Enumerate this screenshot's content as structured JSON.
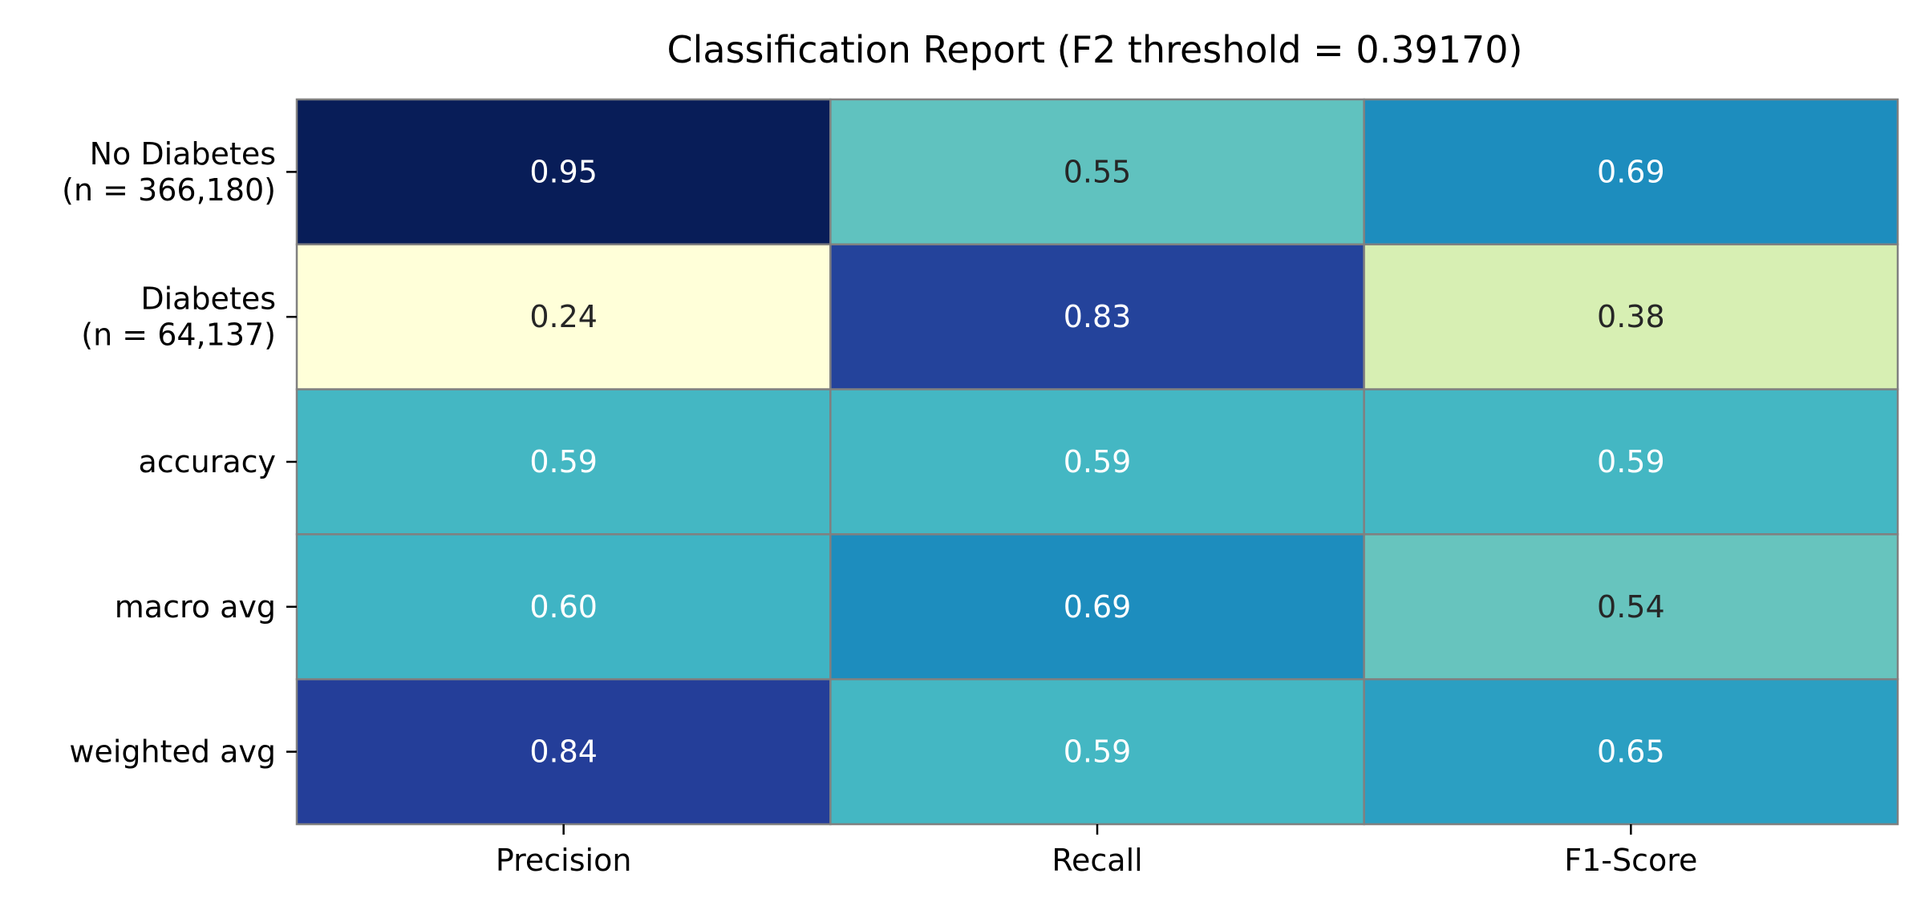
{
  "chart_data": {
    "type": "heatmap",
    "title": "Classification Report (F2 threshold = 0.39170)",
    "xlabel": "",
    "ylabel": "",
    "columns": [
      "Precision",
      "Recall",
      "F1-Score"
    ],
    "rows": [
      [
        "No Diabetes",
        "(n = 366,180)"
      ],
      [
        "Diabetes",
        "(n = 64,137)"
      ],
      [
        "accuracy"
      ],
      [
        "macro avg"
      ],
      [
        "weighted avg"
      ]
    ],
    "values": [
      [
        0.95,
        0.55,
        0.69
      ],
      [
        0.24,
        0.83,
        0.38
      ],
      [
        0.59,
        0.59,
        0.59
      ],
      [
        0.6,
        0.69,
        0.54
      ],
      [
        0.84,
        0.59,
        0.65
      ]
    ],
    "cell_labels": [
      [
        "0.95",
        "0.55",
        "0.69"
      ],
      [
        "0.24",
        "0.83",
        "0.38"
      ],
      [
        "0.59",
        "0.59",
        "0.59"
      ],
      [
        "0.60",
        "0.69",
        "0.54"
      ],
      [
        "0.84",
        "0.59",
        "0.65"
      ]
    ],
    "colormap": "YlGnBu",
    "vmin": 0.24,
    "vmax": 0.95,
    "grid": true,
    "colorbar": false
  },
  "colors": {
    "cell_border": "#808080",
    "text_dark": "#262626",
    "text_light": "#ffffff",
    "colormap_stops": [
      "#ffffd9",
      "#edf8b1",
      "#c7e9b4",
      "#7fcdbb",
      "#41b6c4",
      "#1d91c0",
      "#225ea8",
      "#253494",
      "#081d58"
    ]
  }
}
